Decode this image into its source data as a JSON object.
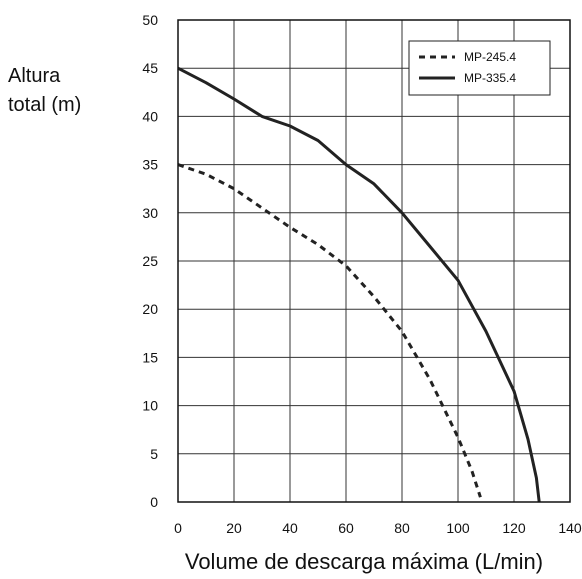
{
  "chart_data": {
    "type": "line",
    "title": "",
    "ylabel_lines": [
      "Altura",
      "total (m)"
    ],
    "xlabel": "Volume de descarga máxima (L/min)",
    "xlim": [
      0,
      140
    ],
    "ylim": [
      0,
      50
    ],
    "xticks": [
      0,
      20,
      40,
      60,
      80,
      100,
      120,
      140
    ],
    "yticks": [
      0,
      5,
      10,
      15,
      20,
      25,
      30,
      35,
      40,
      45,
      50
    ],
    "x_tick_labels": [
      "0",
      "20",
      "40",
      "60",
      "80",
      "100",
      "120",
      "140"
    ],
    "y_tick_labels": [
      "0",
      "5",
      "10",
      "15",
      "20",
      "25",
      "30",
      "35",
      "40",
      "45",
      "50"
    ],
    "grid": true,
    "legend_position": "top-right",
    "series": [
      {
        "name": "MP-245.4",
        "style": "dashed",
        "color": "#222222",
        "points": [
          [
            0,
            35
          ],
          [
            10,
            34
          ],
          [
            20,
            32.5
          ],
          [
            30,
            30.5
          ],
          [
            40,
            28.5
          ],
          [
            50,
            26.7
          ],
          [
            60,
            24.5
          ],
          [
            70,
            21.3
          ],
          [
            80,
            17.7
          ],
          [
            90,
            12.7
          ],
          [
            100,
            6.7
          ],
          [
            105,
            3.2
          ],
          [
            108,
            0.5
          ]
        ]
      },
      {
        "name": "MP-335.4",
        "style": "solid",
        "color": "#222222",
        "points": [
          [
            0,
            45
          ],
          [
            10,
            43.5
          ],
          [
            20,
            41.8
          ],
          [
            30,
            40
          ],
          [
            40,
            39
          ],
          [
            50,
            37.5
          ],
          [
            60,
            35
          ],
          [
            70,
            33
          ],
          [
            80,
            30
          ],
          [
            90,
            26.5
          ],
          [
            100,
            23
          ],
          [
            110,
            17.7
          ],
          [
            120,
            11.5
          ],
          [
            125,
            6.5
          ],
          [
            128,
            2.5
          ],
          [
            129,
            0
          ]
        ]
      }
    ]
  }
}
